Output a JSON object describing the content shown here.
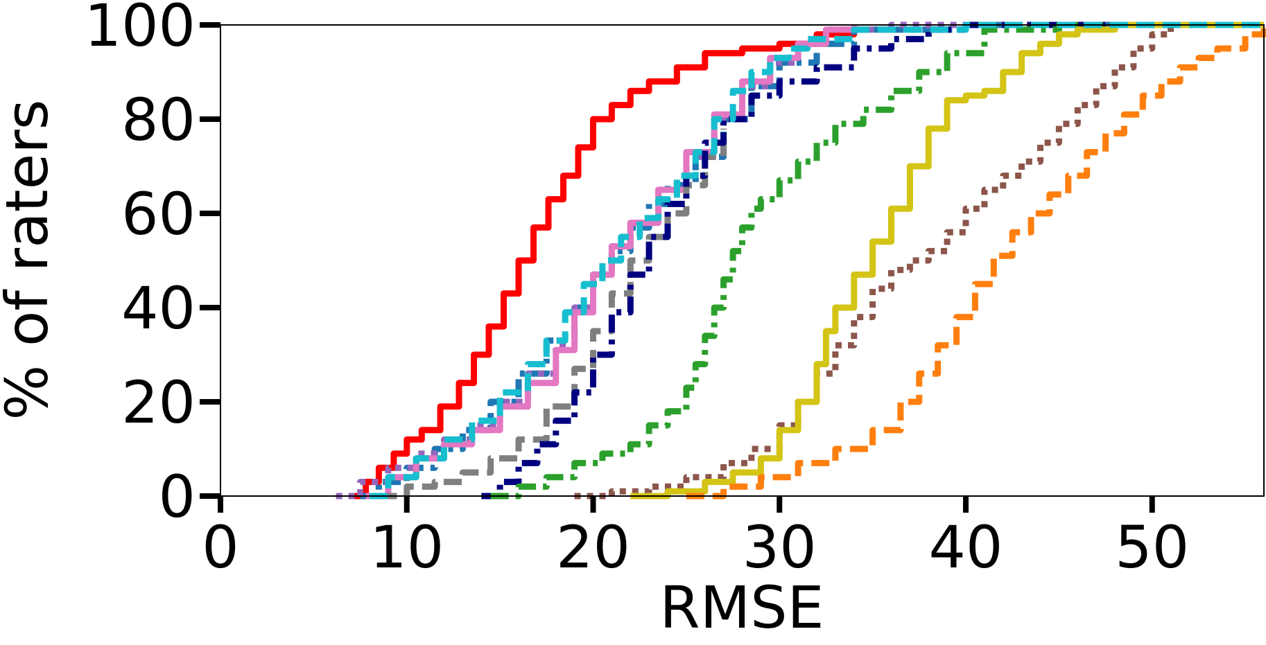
{
  "chart_data": {
    "type": "line",
    "title": "",
    "xlabel": "RMSE",
    "ylabel": "% of raters",
    "xlim": [
      0,
      56
    ],
    "ylim": [
      0,
      100
    ],
    "xticks": [
      0,
      10,
      20,
      30,
      40,
      50
    ],
    "yticks": [
      0,
      20,
      40,
      60,
      80,
      100
    ],
    "grid": false,
    "legend": "none",
    "series": [
      {
        "color": "#ff0000",
        "dash": "solid",
        "x": [
          7.2,
          7.8,
          8.5,
          9.3,
          10.0,
          10.8,
          11.8,
          12.8,
          13.6,
          14.4,
          15.2,
          16.0,
          16.8,
          17.6,
          18.4,
          19.2,
          20.0,
          21.0,
          22.0,
          23.0,
          24.5,
          26.0,
          28.0,
          30.0,
          32.0,
          34.0
        ],
        "y": [
          0,
          3,
          6,
          9,
          12,
          14,
          19,
          24,
          30,
          36,
          43,
          50,
          57,
          63,
          68,
          74,
          80,
          83,
          86,
          88,
          91,
          94,
          95,
          96,
          98,
          100
        ]
      },
      {
        "color": "#1f77b4",
        "dash": "dashdot",
        "x": [
          7.5,
          8.5,
          10.0,
          11.5,
          13.0,
          14.5,
          16.0,
          17.5,
          19.0,
          20.0,
          21.0,
          22.0,
          23.0,
          24.0,
          25.5,
          27.0,
          28.5,
          30.0,
          32.0,
          34.0,
          40.0,
          56.0
        ],
        "y": [
          0,
          3,
          6,
          10,
          14,
          20,
          26,
          33,
          40,
          47,
          52,
          57,
          62,
          66,
          72,
          80,
          87,
          92,
          96,
          99,
          100,
          100
        ]
      },
      {
        "color": "#9467bd",
        "dash": "dotted",
        "x": [
          6.2,
          7.5,
          9.0,
          10.5,
          12.0,
          13.5,
          15.0,
          16.5,
          18.0,
          19.0,
          20.0,
          21.0,
          22.0,
          23.5,
          25.0,
          26.5,
          28.0,
          29.5,
          31.0,
          32.5,
          36.0,
          40.0
        ],
        "y": [
          0,
          3,
          6,
          9,
          12,
          15,
          20,
          26,
          32,
          40,
          47,
          53,
          58,
          65,
          72,
          80,
          87,
          92,
          96,
          99,
          100,
          100
        ]
      },
      {
        "color": "#e377c2",
        "dash": "solid",
        "x": [
          7.8,
          9.0,
          10.5,
          12.0,
          13.5,
          15.0,
          16.5,
          18.0,
          19.0,
          20.0,
          21.0,
          22.0,
          23.5,
          25.0,
          26.5,
          28.0,
          29.5,
          31.0,
          32.5,
          34.0
        ],
        "y": [
          0,
          4,
          8,
          11,
          14,
          19,
          24,
          31,
          39,
          47,
          53,
          58,
          65,
          73,
          81,
          88,
          93,
          96,
          99,
          100
        ]
      },
      {
        "color": "#7f7f7f",
        "dash": "dashed",
        "x": [
          8.5,
          10.0,
          11.5,
          13.0,
          14.5,
          16.0,
          17.5,
          19.0,
          20.0,
          21.0,
          22.0,
          23.0,
          24.0,
          25.0,
          26.0,
          27.0
        ],
        "y": [
          0,
          2,
          3,
          5,
          8,
          12,
          19,
          27,
          35,
          43,
          50,
          55,
          60,
          66,
          72,
          78
        ]
      },
      {
        "color": "#000080",
        "dash": "dashdot",
        "x": [
          14.0,
          15.0,
          16.0,
          17.0,
          18.0,
          19.0,
          20.0,
          21.0,
          22.0,
          23.0,
          24.0,
          25.0,
          26.0,
          27.0,
          28.5,
          30.0,
          32.0,
          34.0,
          36.0,
          38.0,
          40.0,
          56.0
        ],
        "y": [
          0,
          3,
          7,
          11,
          16,
          22,
          30,
          39,
          47,
          55,
          62,
          68,
          75,
          80,
          85,
          88,
          91,
          95,
          97,
          99,
          100,
          100
        ]
      },
      {
        "color": "#2ca02c",
        "dash": "dashdot",
        "x": [
          14.5,
          16.0,
          17.5,
          19.0,
          20.5,
          22.0,
          23.0,
          24.0,
          25.0,
          25.5,
          26.0,
          26.5,
          27.0,
          27.5,
          28.0,
          28.5,
          29.0,
          30.0,
          31.0,
          32.0,
          33.0,
          34.5,
          36.0,
          37.5,
          39.0,
          41.0,
          45.0,
          56.0
        ],
        "y": [
          0,
          2,
          4,
          7,
          9,
          11,
          15,
          18,
          23,
          28,
          34,
          40,
          46,
          52,
          57,
          61,
          63,
          67,
          71,
          75,
          79,
          82,
          86,
          90,
          94,
          99,
          100,
          100
        ]
      },
      {
        "color": "#8c564b",
        "dash": "dotted",
        "x": [
          19.0,
          21.0,
          23.0,
          25.0,
          27.0,
          28.5,
          30.0,
          31.0,
          32.0,
          33.0,
          34.0,
          35.0,
          36.0,
          37.0,
          38.0,
          39.0,
          40.0,
          41.0,
          42.0,
          43.0,
          44.0,
          45.0,
          46.0,
          47.0,
          48.0,
          49.0,
          50.0,
          51.0,
          53.0,
          56.0
        ],
        "y": [
          0,
          1,
          2,
          4,
          7,
          10,
          15,
          20,
          26,
          32,
          38,
          44,
          48,
          50,
          52,
          56,
          61,
          65,
          68,
          71,
          75,
          79,
          83,
          87,
          91,
          95,
          98,
          100,
          100,
          100
        ]
      },
      {
        "color": "#d4c416",
        "dash": "solid",
        "x": [
          22.0,
          24.0,
          26.0,
          27.5,
          29.0,
          30.0,
          31.0,
          32.0,
          32.5,
          33.0,
          34.0,
          35.0,
          36.0,
          37.0,
          38.0,
          39.0,
          40.0,
          41.0,
          42.0,
          43.0,
          44.0,
          45.0,
          46.0,
          47.0,
          48.0,
          56.0
        ],
        "y": [
          0,
          1,
          3,
          5,
          8,
          14,
          20,
          28,
          35,
          40,
          47,
          54,
          61,
          70,
          78,
          84,
          85,
          86,
          90,
          94,
          96,
          98,
          99,
          99,
          100,
          100
        ]
      },
      {
        "color": "#ff7f0e",
        "dash": "dashed",
        "x": [
          25.0,
          27.0,
          29.0,
          31.0,
          33.0,
          35.0,
          36.5,
          37.5,
          38.5,
          39.5,
          40.5,
          41.5,
          42.5,
          43.5,
          44.5,
          45.5,
          46.5,
          47.5,
          48.5,
          49.5,
          50.5,
          51.5,
          52.5,
          53.5,
          55.0,
          56.0
        ],
        "y": [
          0,
          2,
          4,
          7,
          10,
          14,
          20,
          26,
          32,
          38,
          45,
          51,
          56,
          60,
          64,
          68,
          73,
          77,
          81,
          85,
          88,
          91,
          93,
          95,
          98,
          100
        ]
      },
      {
        "color": "#17becf",
        "dash": "dashed",
        "x": [
          8.0,
          9.0,
          10.5,
          12.0,
          13.5,
          15.0,
          16.5,
          17.5,
          18.5,
          19.5,
          20.5,
          21.5,
          22.5,
          23.5,
          24.5,
          25.5,
          26.5,
          27.5,
          28.5,
          29.5,
          30.5,
          31.5,
          34.0,
          40.0,
          56.0
        ],
        "y": [
          0,
          4,
          8,
          12,
          16,
          22,
          28,
          33,
          39,
          45,
          50,
          55,
          59,
          63,
          68,
          73,
          80,
          86,
          90,
          93,
          95,
          97,
          99,
          100,
          100
        ]
      }
    ]
  }
}
